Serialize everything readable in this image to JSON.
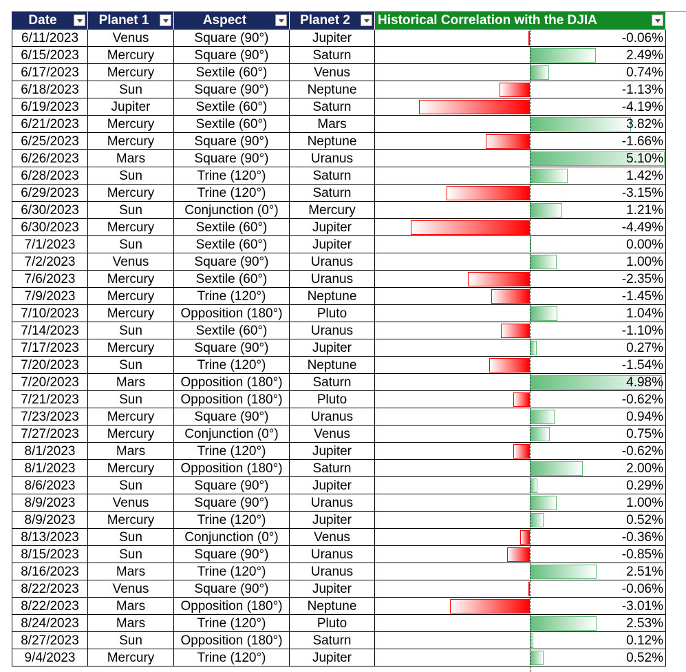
{
  "table": {
    "headers": [
      "Date",
      "Planet 1",
      "Aspect",
      "Planet 2",
      "Historical Correlation with the DJIA"
    ],
    "rows": [
      {
        "cells": [
          "6/11/2023",
          "Venus",
          "Square (90°)",
          "Jupiter"
        ],
        "value": -0.06,
        "label": "-0.06%"
      },
      {
        "cells": [
          "6/15/2023",
          "Mercury",
          "Square (90°)",
          "Saturn"
        ],
        "value": 2.49,
        "label": "2.49%"
      },
      {
        "cells": [
          "6/17/2023",
          "Mercury",
          "Sextile (60°)",
          "Venus"
        ],
        "value": 0.74,
        "label": "0.74%"
      },
      {
        "cells": [
          "6/18/2023",
          "Sun",
          "Square (90°)",
          "Neptune"
        ],
        "value": -1.13,
        "label": "-1.13%"
      },
      {
        "cells": [
          "6/19/2023",
          "Jupiter",
          "Sextile (60°)",
          "Saturn"
        ],
        "value": -4.19,
        "label": "-4.19%"
      },
      {
        "cells": [
          "6/21/2023",
          "Mercury",
          "Sextile (60°)",
          "Mars"
        ],
        "value": 3.82,
        "label": "3.82%"
      },
      {
        "cells": [
          "6/25/2023",
          "Mercury",
          "Square (90°)",
          "Neptune"
        ],
        "value": -1.66,
        "label": "-1.66%"
      },
      {
        "cells": [
          "6/26/2023",
          "Mars",
          "Square (90°)",
          "Uranus"
        ],
        "value": 5.1,
        "label": "5.10%"
      },
      {
        "cells": [
          "6/28/2023",
          "Sun",
          "Trine (120°)",
          "Saturn"
        ],
        "value": 1.42,
        "label": "1.42%"
      },
      {
        "cells": [
          "6/29/2023",
          "Mercury",
          "Trine (120°)",
          "Saturn"
        ],
        "value": -3.15,
        "label": "-3.15%"
      },
      {
        "cells": [
          "6/30/2023",
          "Sun",
          "Conjunction (0°)",
          "Mercury"
        ],
        "value": 1.21,
        "label": "1.21%"
      },
      {
        "cells": [
          "6/30/2023",
          "Mercury",
          "Sextile (60°)",
          "Jupiter"
        ],
        "value": -4.49,
        "label": "-4.49%"
      },
      {
        "cells": [
          "7/1/2023",
          "Sun",
          "Sextile (60°)",
          "Jupiter"
        ],
        "value": 0.0,
        "label": "0.00%"
      },
      {
        "cells": [
          "7/2/2023",
          "Venus",
          "Square (90°)",
          "Uranus"
        ],
        "value": 1.0,
        "label": "1.00%"
      },
      {
        "cells": [
          "7/6/2023",
          "Mercury",
          "Sextile (60°)",
          "Uranus"
        ],
        "value": -2.35,
        "label": "-2.35%"
      },
      {
        "cells": [
          "7/9/2023",
          "Mercury",
          "Trine (120°)",
          "Neptune"
        ],
        "value": -1.45,
        "label": "-1.45%"
      },
      {
        "cells": [
          "7/10/2023",
          "Mercury",
          "Opposition (180°)",
          "Pluto"
        ],
        "value": 1.04,
        "label": "1.04%"
      },
      {
        "cells": [
          "7/14/2023",
          "Sun",
          "Sextile (60°)",
          "Uranus"
        ],
        "value": -1.1,
        "label": "-1.10%"
      },
      {
        "cells": [
          "7/17/2023",
          "Mercury",
          "Square (90°)",
          "Jupiter"
        ],
        "value": 0.27,
        "label": "0.27%"
      },
      {
        "cells": [
          "7/20/2023",
          "Sun",
          "Trine (120°)",
          "Neptune"
        ],
        "value": -1.54,
        "label": "-1.54%"
      },
      {
        "cells": [
          "7/20/2023",
          "Mars",
          "Opposition (180°)",
          "Saturn"
        ],
        "value": 4.98,
        "label": "4.98%"
      },
      {
        "cells": [
          "7/21/2023",
          "Sun",
          "Opposition (180°)",
          "Pluto"
        ],
        "value": -0.62,
        "label": "-0.62%"
      },
      {
        "cells": [
          "7/23/2023",
          "Mercury",
          "Square (90°)",
          "Uranus"
        ],
        "value": 0.94,
        "label": "0.94%"
      },
      {
        "cells": [
          "7/27/2023",
          "Mercury",
          "Conjunction (0°)",
          "Venus"
        ],
        "value": 0.75,
        "label": "0.75%"
      },
      {
        "cells": [
          "8/1/2023",
          "Mars",
          "Trine (120°)",
          "Jupiter"
        ],
        "value": -0.62,
        "label": "-0.62%"
      },
      {
        "cells": [
          "8/1/2023",
          "Mercury",
          "Opposition (180°)",
          "Saturn"
        ],
        "value": 2.0,
        "label": "2.00%"
      },
      {
        "cells": [
          "8/6/2023",
          "Sun",
          "Square (90°)",
          "Jupiter"
        ],
        "value": 0.29,
        "label": "0.29%"
      },
      {
        "cells": [
          "8/9/2023",
          "Venus",
          "Square (90°)",
          "Uranus"
        ],
        "value": 1.0,
        "label": "1.00%"
      },
      {
        "cells": [
          "8/9/2023",
          "Mercury",
          "Trine (120°)",
          "Jupiter"
        ],
        "value": 0.52,
        "label": "0.52%"
      },
      {
        "cells": [
          "8/13/2023",
          "Sun",
          "Conjunction (0°)",
          "Venus"
        ],
        "value": -0.36,
        "label": "-0.36%"
      },
      {
        "cells": [
          "8/15/2023",
          "Sun",
          "Square (90°)",
          "Uranus"
        ],
        "value": -0.85,
        "label": "-0.85%"
      },
      {
        "cells": [
          "8/16/2023",
          "Mars",
          "Trine (120°)",
          "Uranus"
        ],
        "value": 2.51,
        "label": "2.51%"
      },
      {
        "cells": [
          "8/22/2023",
          "Venus",
          "Square (90°)",
          "Jupiter"
        ],
        "value": -0.06,
        "label": "-0.06%"
      },
      {
        "cells": [
          "8/22/2023",
          "Mars",
          "Opposition (180°)",
          "Neptune"
        ],
        "value": -3.01,
        "label": "-3.01%"
      },
      {
        "cells": [
          "8/24/2023",
          "Mars",
          "Trine (120°)",
          "Pluto"
        ],
        "value": 2.53,
        "label": "2.53%"
      },
      {
        "cells": [
          "8/27/2023",
          "Sun",
          "Opposition (180°)",
          "Saturn"
        ],
        "value": 0.12,
        "label": "0.12%"
      },
      {
        "cells": [
          "9/4/2023",
          "Mercury",
          "Trine (120°)",
          "Jupiter"
        ],
        "value": 0.52,
        "label": "0.52%"
      }
    ]
  }
}
